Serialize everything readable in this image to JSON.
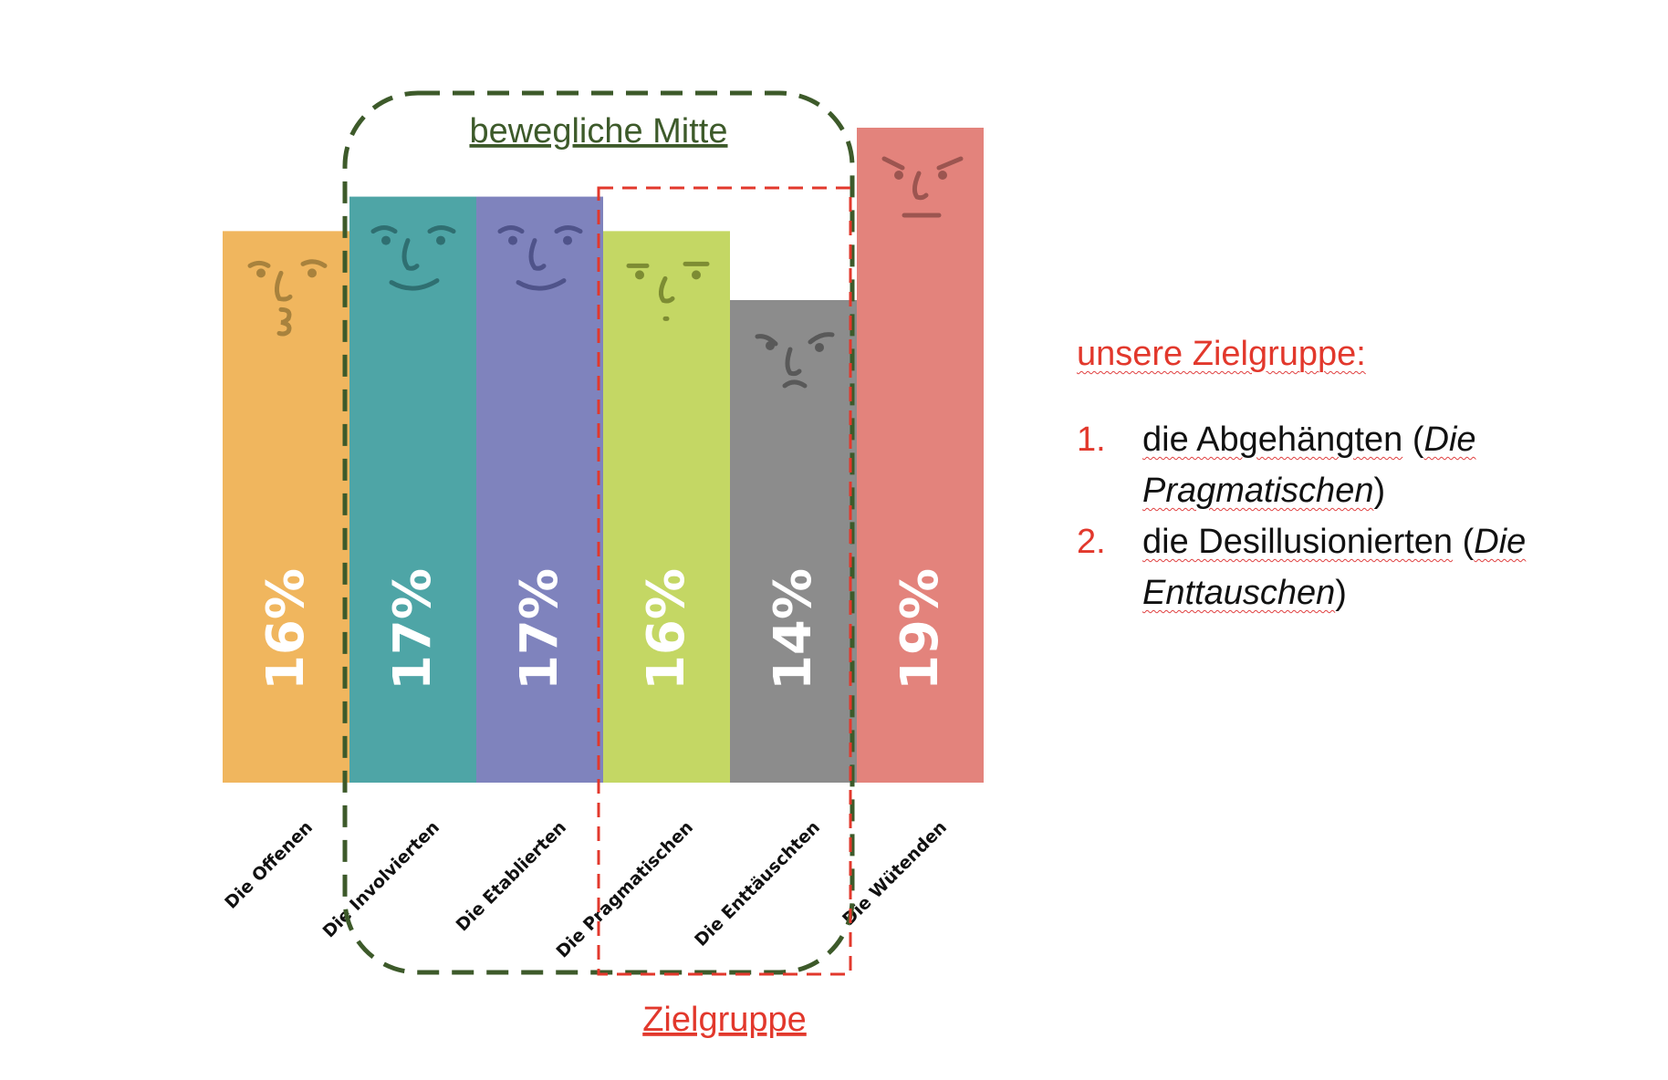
{
  "chart_data": {
    "type": "bar",
    "categories": [
      "Die Offenen",
      "Die Involvierten",
      "Die Etablierten",
      "Die Pragmatischen",
      "Die Enttäuschten",
      "Die Wütenden"
    ],
    "values": [
      16,
      17,
      17,
      16,
      14,
      19
    ],
    "value_labels": [
      "16%",
      "17%",
      "17%",
      "16%",
      "14%",
      "19%"
    ],
    "ylim": [
      0,
      19
    ],
    "grid": false,
    "bar_colors": [
      "#f0b65e",
      "#4ea5a6",
      "#7f83bd",
      "#c4d764",
      "#8c8c8c",
      "#e3837c"
    ],
    "face_colors": [
      "#a8823d",
      "#2f6f71",
      "#4f538a",
      "#7d8c33",
      "#595959",
      "#9c5550"
    ],
    "annotations": {
      "middle_group": {
        "label": "bewegliche Mitte",
        "color": "#3d5a2a",
        "covers": [
          "Die Involvierten",
          "Die Etablierten",
          "Die Pragmatischen",
          "Die Enttäuschten"
        ]
      },
      "target_group": {
        "label": "Zielgruppe",
        "color": "#e2382c",
        "covers": [
          "Die Pragmatischen",
          "Die Enttäuschten"
        ]
      }
    }
  },
  "side": {
    "title": "unsere Zielgruppe:",
    "items": [
      {
        "num": "1.",
        "text": "die Abgehängten",
        "italic": "Die Pragmatischen"
      },
      {
        "num": "2.",
        "text": "die Desillusionierten",
        "italic": "Die Enttauschen"
      }
    ],
    "paren_open": "(",
    "paren_close": ")"
  }
}
